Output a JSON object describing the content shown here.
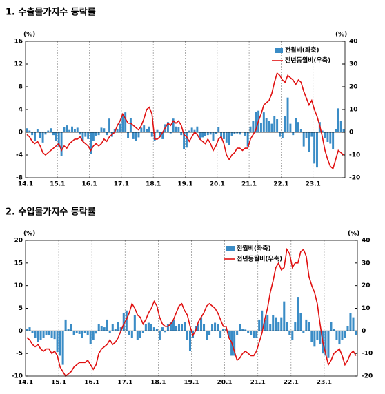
{
  "chart_data": [
    {
      "type": "bar-line",
      "title": "1. 수출물가지수 등락률",
      "y_unit": "(%)",
      "y2_unit": "(%)",
      "categories": [
        "14.1",
        null,
        null,
        null,
        null,
        null,
        null,
        null,
        null,
        null,
        null,
        null,
        "15.1",
        null,
        null,
        null,
        null,
        null,
        null,
        null,
        null,
        null,
        null,
        null,
        "16.1",
        null,
        null,
        null,
        null,
        null,
        null,
        null,
        null,
        null,
        null,
        null,
        "17.1",
        null,
        null,
        null,
        null,
        null,
        null,
        null,
        null,
        null,
        null,
        null,
        "18.1",
        null,
        null,
        null,
        null,
        null,
        null,
        null,
        null,
        null,
        null,
        null,
        "19.1",
        null,
        null,
        null,
        null,
        null,
        null,
        null,
        null,
        null,
        null,
        null,
        "20.1",
        null,
        null,
        null,
        null,
        null,
        null,
        null,
        null,
        null,
        null,
        null,
        "21.1",
        null,
        null,
        null,
        null,
        null,
        null,
        null,
        null,
        null,
        null,
        null,
        "22.1",
        null,
        null,
        null,
        null,
        null,
        null,
        null,
        null,
        null,
        null,
        null,
        "23.1",
        null,
        null,
        null,
        null,
        null,
        null,
        null,
        null,
        null,
        null,
        null
      ],
      "ylim": [
        -8,
        16
      ],
      "yticks": [
        -8,
        -4,
        0,
        4,
        8,
        12,
        16
      ],
      "y2lim": [
        -20,
        40
      ],
      "y2ticks": [
        -20,
        -10,
        0,
        10,
        20,
        30,
        40
      ],
      "xgrid": true,
      "series": [
        {
          "name": "전월비(좌축)",
          "kind": "bar",
          "color": "#3a8cc6",
          "values": [
            0.7,
            0.3,
            -0.5,
            -1.5,
            0.5,
            -1.0,
            -1.8,
            -0.4,
            0.3,
            0.7,
            -0.5,
            -1.5,
            -2.5,
            -4.2,
            0.9,
            1.2,
            0.4,
            1.0,
            0.6,
            0.8,
            -0.4,
            -1.5,
            -0.8,
            -1.2,
            -3.8,
            -1.5,
            -0.6,
            -0.5,
            0.8,
            0.7,
            -0.5,
            2.4,
            -0.8,
            0.5,
            0.6,
            1.5,
            3.2,
            3.5,
            -1.0,
            2.5,
            -1.2,
            -1.5,
            -0.9,
            0.8,
            1.2,
            0.5,
            1.0,
            -0.8,
            -1.5,
            0.4,
            -0.8,
            -1.2,
            1.4,
            1.8,
            -0.2,
            2.4,
            1.0,
            0.9,
            -0.5,
            -3.0,
            -2.7,
            0.3,
            0.8,
            0.4,
            1.0,
            -1.3,
            -0.9,
            -0.7,
            -0.5,
            -0.4,
            -1.5,
            -0.3,
            0.9,
            -1.1,
            -1.2,
            -1.8,
            -2.2,
            -0.6,
            -0.3,
            -0.2,
            -0.4,
            0.1,
            -0.6,
            -2.5,
            1.0,
            2.0,
            3.6,
            3.8,
            1.7,
            3.5,
            2.5,
            2.0,
            1.5,
            2.8,
            2.3,
            -0.8,
            -1.0,
            2.8,
            6.1,
            1.5,
            -0.5,
            2.5,
            1.8,
            0.5,
            -2.5,
            -1.0,
            -3.5,
            -0.8,
            -5.5,
            -6.2,
            1.8,
            0.3,
            -1.0,
            -1.7,
            -2.0,
            -3.0,
            0.5,
            4.2,
            2.0,
            0.6
          ]
        },
        {
          "name": "전년동월비(우축)",
          "kind": "line",
          "axis": "y2",
          "color": "#e01010",
          "values": [
            -1,
            -2,
            -4,
            -5,
            -4,
            -6,
            -9,
            -10,
            -9,
            -8,
            -7,
            -6,
            -5,
            -8,
            -6,
            -7,
            -5,
            -4,
            -3,
            -3,
            -2,
            -4,
            -5,
            -6,
            -8,
            -6,
            -5,
            -6,
            -5,
            -3,
            -4,
            -2,
            -1,
            0,
            3,
            5,
            8,
            6,
            4,
            4,
            3,
            2,
            1,
            3,
            6,
            10,
            11,
            8,
            -3,
            -3,
            -2,
            0,
            2,
            4,
            3,
            5,
            4,
            5,
            3,
            -1,
            -2,
            -4,
            -2,
            0,
            -1,
            -3,
            -4,
            -5,
            -3,
            -5,
            -8,
            -6,
            -3,
            -2,
            -5,
            -10,
            -12,
            -10,
            -9,
            -7,
            -7,
            -8,
            -7,
            -7,
            -3,
            -1,
            1,
            5,
            8,
            12,
            13,
            14,
            17,
            22,
            26,
            25,
            23,
            22,
            25,
            24,
            23,
            21,
            23,
            22,
            18,
            15,
            12,
            14,
            10,
            7,
            3,
            -2,
            -8,
            -12,
            -15,
            -16,
            -12,
            -8,
            -9,
            -10
          ]
        }
      ]
    },
    {
      "type": "bar-line",
      "title": "2. 수입물가지수 등락률",
      "y_unit": "(%)",
      "y2_unit": "(%)",
      "categories": [
        "14.1",
        null,
        null,
        null,
        null,
        null,
        null,
        null,
        null,
        null,
        null,
        null,
        "15.1",
        null,
        null,
        null,
        null,
        null,
        null,
        null,
        null,
        null,
        null,
        null,
        "16.1",
        null,
        null,
        null,
        null,
        null,
        null,
        null,
        null,
        null,
        null,
        null,
        "17.1",
        null,
        null,
        null,
        null,
        null,
        null,
        null,
        null,
        null,
        null,
        null,
        "18.1",
        null,
        null,
        null,
        null,
        null,
        null,
        null,
        null,
        null,
        null,
        null,
        "19.1",
        null,
        null,
        null,
        null,
        null,
        null,
        null,
        null,
        null,
        null,
        null,
        "20.1",
        null,
        null,
        null,
        null,
        null,
        null,
        null,
        null,
        null,
        null,
        null,
        "21.1",
        null,
        null,
        null,
        null,
        null,
        null,
        null,
        null,
        null,
        null,
        null,
        "22.1",
        null,
        null,
        null,
        null,
        null,
        null,
        null,
        null,
        null,
        null,
        null,
        "23.1",
        null,
        null,
        null,
        null,
        null,
        null,
        null,
        null,
        null,
        null,
        null
      ],
      "ylim": [
        -10,
        20
      ],
      "yticks": [
        -10,
        -5,
        0,
        5,
        10,
        15,
        20
      ],
      "y2lim": [
        -20,
        40
      ],
      "y2ticks": [
        -20,
        -10,
        0,
        10,
        20,
        30,
        40
      ],
      "xgrid": true,
      "series": [
        {
          "name": "전월비(좌축)",
          "kind": "bar",
          "color": "#3a8cc6",
          "values": [
            0.5,
            0.8,
            -0.5,
            -1.5,
            -2.5,
            -2.0,
            -1.5,
            -1.0,
            -1.0,
            -1.5,
            -1.8,
            -4.7,
            -5.5,
            -7.5,
            2.5,
            0.5,
            1.5,
            -1.0,
            -0.5,
            -0.7,
            -1.5,
            -0.5,
            -1.0,
            -3.0,
            -2.0,
            -0.6,
            1.5,
            1.0,
            0.8,
            2.5,
            -0.5,
            1.5,
            0.5,
            2.0,
            0.8,
            4.0,
            4.5,
            -1.0,
            -1.5,
            3.5,
            -2.0,
            -1.5,
            -0.5,
            1.5,
            1.8,
            1.5,
            0.8,
            0.5,
            -2.0,
            0.8,
            -0.3,
            1.5,
            2.0,
            2.5,
            1.0,
            1.5,
            1.5,
            2.0,
            -2.0,
            -4.5,
            -1.5,
            1.0,
            1.5,
            3.0,
            1.5,
            -2.0,
            -1.0,
            1.5,
            1.8,
            1.5,
            -1.5,
            0.5,
            0.5,
            -1.5,
            -5.5,
            -5.5,
            -1.0,
            1.5,
            0.5,
            0.3,
            -0.5,
            -1.0,
            -1.5,
            -1.5,
            2.5,
            4.5,
            2.5,
            3.5,
            1.5,
            3.5,
            3.0,
            2.0,
            3.0,
            6.5,
            2.0,
            -1.0,
            -2.0,
            2.0,
            7.5,
            4.0,
            -0.5,
            2.5,
            2.0,
            -2.5,
            -3.5,
            -2.0,
            -3.0,
            -5.0,
            -5.5,
            -6.0,
            2.0,
            0.5,
            -2.0,
            -3.0,
            -2.0,
            -1.5,
            1.0,
            4.0,
            3.0,
            -1.0
          ]
        },
        {
          "name": "전년동월비(우축)",
          "kind": "line",
          "axis": "y2",
          "color": "#e01010",
          "values": [
            -3,
            -4,
            -6,
            -7,
            -6,
            -8,
            -9,
            -8,
            -8,
            -10,
            -9,
            -11,
            -16,
            -18,
            -20,
            -19,
            -18,
            -16,
            -15,
            -14,
            -14,
            -14,
            -13,
            -15,
            -17,
            -15,
            -10,
            -8,
            -7,
            -6,
            -4,
            -6,
            -5,
            -3,
            0,
            3,
            5,
            8,
            12,
            10,
            7,
            6,
            3,
            5,
            8,
            10,
            13,
            11,
            6,
            3,
            2,
            2,
            3,
            5,
            8,
            11,
            12,
            9,
            7,
            2,
            -2,
            0,
            4,
            6,
            8,
            11,
            12,
            11,
            10,
            8,
            5,
            2,
            2,
            -3,
            -5,
            -9,
            -13,
            -12,
            -10,
            -9,
            -10,
            -11,
            -11,
            -9,
            -5,
            -1,
            5,
            10,
            17,
            22,
            28,
            30,
            27,
            28,
            36,
            34,
            28,
            30,
            30,
            35,
            36,
            33,
            24,
            20,
            17,
            12,
            3,
            -5,
            -10,
            -15,
            -13,
            -10,
            -9,
            -8,
            -11,
            -15,
            -13,
            -10,
            -9,
            -11
          ]
        }
      ]
    }
  ]
}
